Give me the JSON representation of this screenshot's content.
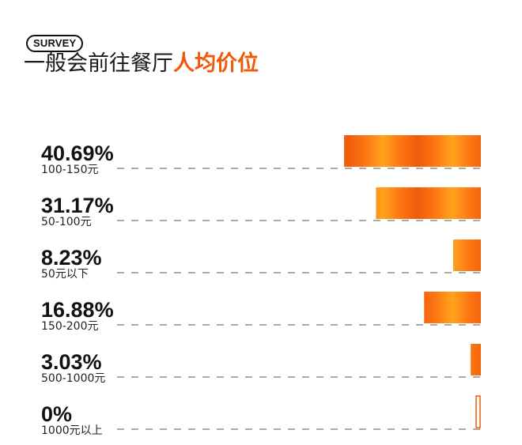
{
  "header": {
    "badge": "SURVEY",
    "title_plain": "一般会前往餐厅",
    "title_accent": "人均价位"
  },
  "colors": {
    "accent": "#f05a0a",
    "bar_light": "#ffa21c",
    "text": "#111111"
  },
  "chart_data": {
    "type": "bar",
    "orientation": "horizontal",
    "categories": [
      "100-150元",
      "50-100元",
      "50元以下",
      "150-200元",
      "500-1000元",
      "1000元以上"
    ],
    "values": [
      40.69,
      31.17,
      8.23,
      16.88,
      3.03,
      0
    ],
    "value_labels": [
      "40.69%",
      "31.17%",
      "8.23%",
      "16.88%",
      "3.03%",
      "0%"
    ],
    "unit": "%",
    "bar_alignment": "right",
    "grid": false,
    "legend": "none"
  }
}
